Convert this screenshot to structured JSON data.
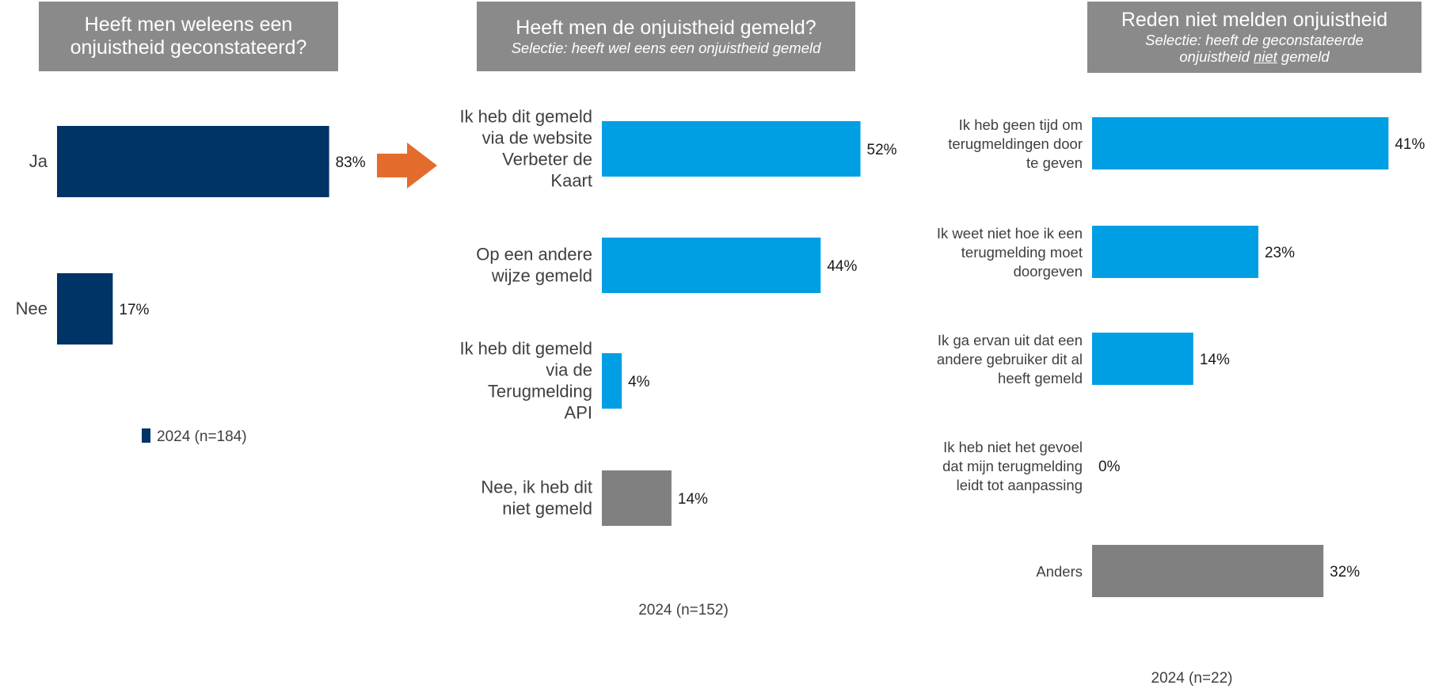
{
  "panels": [
    {
      "header": {
        "title": "Heeft men weleens een onjuistheid geconstateerd?"
      },
      "legend": {
        "label": "2024 (n=184)",
        "color": "#003366"
      }
    },
    {
      "header": {
        "title": "Heeft men de onjuistheid gemeld?",
        "subtitle": "Selectie: heeft wel eens een onjuistheid gemeld"
      },
      "footnote": "2024 (n=152)"
    },
    {
      "header": {
        "title": "Reden niet melden onjuistheid",
        "subtitle_before": "Selectie: heeft de geconstateerde onjuistheid ",
        "subtitle_underlined": "niet",
        "subtitle_after": " gemeld"
      },
      "footnote": "2024 (n=22)"
    }
  ],
  "colors": {
    "navy": "#003366",
    "blue": "#009fe3",
    "gray": "#808080",
    "arrow": "#e36c2d",
    "header_bg": "#8a8a8a"
  },
  "chart_data": [
    {
      "type": "bar",
      "orientation": "horizontal",
      "title": "Heeft men weleens een onjuistheid geconstateerd?",
      "categories": [
        "Ja",
        "Nee"
      ],
      "series": [
        {
          "name": "2024 (n=184)",
          "values": [
            83,
            17
          ]
        }
      ],
      "value_labels": [
        "83%",
        "17%"
      ],
      "unit": "%",
      "xlim": [
        0,
        100
      ],
      "legend": "bottom"
    },
    {
      "type": "bar",
      "orientation": "horizontal",
      "title": "Heeft men de onjuistheid gemeld?",
      "subtitle": "Selectie: heeft wel eens een onjuistheid gemeld",
      "categories": [
        [
          "Ik heb dit gemeld",
          "via de website",
          "Verbeter de",
          "Kaart"
        ],
        [
          "Op een andere",
          "wijze gemeld"
        ],
        [
          "Ik heb dit gemeld",
          "via de",
          "Terugmelding",
          "API"
        ],
        [
          "Nee, ik heb dit",
          "niet gemeld"
        ]
      ],
      "values": [
        52,
        44,
        4,
        14
      ],
      "value_labels": [
        "52%",
        "44%",
        "4%",
        "14%"
      ],
      "bar_colors": [
        "#009fe3",
        "#009fe3",
        "#009fe3",
        "#808080"
      ],
      "unit": "%",
      "xlim": [
        0,
        100
      ],
      "footnote": "2024 (n=152)"
    },
    {
      "type": "bar",
      "orientation": "horizontal",
      "title": "Reden niet melden onjuistheid",
      "subtitle": "Selectie: heeft de geconstateerde onjuistheid niet gemeld",
      "categories": [
        [
          "Ik heb geen tijd om",
          "terugmeldingen door",
          "te geven"
        ],
        [
          "Ik weet niet hoe ik een",
          "terugmelding moet",
          "doorgeven"
        ],
        [
          "Ik ga ervan uit dat een",
          "andere gebruiker dit al",
          "heeft gemeld"
        ],
        [
          "Ik heb niet het gevoel",
          "dat mijn terugmelding",
          "leidt tot aanpassing"
        ],
        [
          "Anders"
        ]
      ],
      "values": [
        41,
        23,
        14,
        0,
        32
      ],
      "value_labels": [
        "41%",
        "23%",
        "14%",
        "0%",
        "32%"
      ],
      "bar_colors": [
        "#009fe3",
        "#009fe3",
        "#009fe3",
        "#009fe3",
        "#808080"
      ],
      "unit": "%",
      "xlim": [
        0,
        100
      ],
      "footnote": "2024 (n=22)"
    }
  ]
}
